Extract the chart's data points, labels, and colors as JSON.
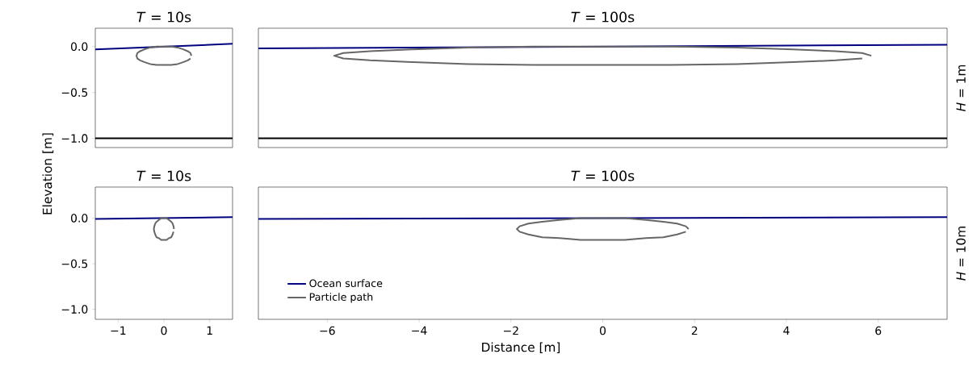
{
  "chart_data": [
    {
      "type": "line",
      "title": "*T* = 10s",
      "xlim": [
        -1.5,
        1.5
      ],
      "ylim": [
        -1.1,
        0.2
      ],
      "yticks": [
        {
          "value": 0,
          "label": "0.0"
        },
        {
          "value": -0.5,
          "label": "−0.5"
        },
        {
          "value": -1,
          "label": "−1.0"
        }
      ],
      "tick_labels": "y",
      "grid": false,
      "legend": false,
      "marker": "none",
      "line_style": "solid",
      "ref_lines": [
        {
          "axis": "y",
          "value": -1,
          "color": "#000000"
        }
      ],
      "series": [
        {
          "color": "#00007f",
          "x": [
            -1.5,
            1.5
          ],
          "values": [
            -0.03,
            0.03
          ]
        },
        {
          "color": "#666666",
          "x": [
            0.6,
            0.58,
            0.52,
            0.42,
            0.3,
            0.16,
            0,
            -0.16,
            -0.3,
            -0.42,
            -0.52,
            -0.58,
            -0.6,
            -0.58,
            -0.52,
            -0.42,
            -0.3,
            -0.16,
            0,
            0.16,
            0.3,
            0.42,
            0.52,
            0.58
          ],
          "values": [
            -0.1,
            -0.07,
            -0.05,
            -0.03,
            -0.01,
            0,
            0,
            0,
            -0.01,
            -0.03,
            -0.05,
            -0.07,
            -0.1,
            -0.13,
            -0.15,
            -0.17,
            -0.19,
            -0.2,
            -0.2,
            -0.2,
            -0.19,
            -0.17,
            -0.15,
            -0.13
          ]
        }
      ]
    },
    {
      "type": "line",
      "title": "*T* = 100s",
      "y2label": "*H* = 1m",
      "xlim": [
        -7.5,
        7.5
      ],
      "ylim": [
        -1.1,
        0.2
      ],
      "tick_labels": false,
      "grid": false,
      "legend": false,
      "marker": "none",
      "line_style": "solid",
      "ref_lines": [
        {
          "axis": "y",
          "value": -1,
          "color": "#000000"
        }
      ],
      "series": [
        {
          "color": "#00007f",
          "x": [
            -7.5,
            7.5
          ],
          "values": [
            -0.02,
            0.02
          ]
        },
        {
          "color": "#666666",
          "x": [
            5.85,
            5.65,
            5.07,
            4.14,
            2.93,
            1.51,
            0,
            -1.51,
            -2.93,
            -4.14,
            -5.07,
            -5.65,
            -5.85,
            -5.65,
            -5.07,
            -4.14,
            -2.93,
            -1.51,
            0,
            1.51,
            2.93,
            4.14,
            5.07,
            5.65
          ],
          "values": [
            -0.1,
            -0.07,
            -0.05,
            -0.03,
            -0.01,
            0,
            0,
            0,
            -0.01,
            -0.03,
            -0.05,
            -0.07,
            -0.1,
            -0.13,
            -0.15,
            -0.17,
            -0.19,
            -0.2,
            -0.2,
            -0.2,
            -0.19,
            -0.17,
            -0.15,
            -0.13
          ]
        }
      ]
    },
    {
      "type": "line",
      "title": "*T* = 10s",
      "ylabel": "Elevation [m]",
      "xlim": [
        -1.5,
        1.5
      ],
      "ylim": [
        -1.11,
        0.34
      ],
      "xticks": [
        {
          "value": -1,
          "label": "−1"
        },
        0,
        1
      ],
      "yticks": [
        {
          "value": 0,
          "label": "0.0"
        },
        {
          "value": -0.5,
          "label": "−0.5"
        },
        {
          "value": -1,
          "label": "−1.0"
        }
      ],
      "grid": false,
      "legend": false,
      "marker": "none",
      "line_style": "solid",
      "series": [
        {
          "color": "#00007f",
          "x": [
            -1.5,
            1.5
          ],
          "values": [
            -0.01,
            0.01
          ]
        },
        {
          "color": "#666666",
          "x": [
            0.22,
            0.21,
            0.19,
            0.16,
            0.11,
            0.06,
            0,
            -0.06,
            -0.11,
            -0.16,
            -0.19,
            -0.21,
            -0.22,
            -0.21,
            -0.19,
            -0.16,
            -0.11,
            -0.06,
            0,
            0.06,
            0.11,
            0.16,
            0.19,
            0.21
          ],
          "values": [
            -0.12,
            -0.09,
            -0.06,
            -0.04,
            -0.02,
            0,
            0,
            0,
            -0.02,
            -0.04,
            -0.06,
            -0.09,
            -0.12,
            -0.15,
            -0.18,
            -0.21,
            -0.22,
            -0.24,
            -0.24,
            -0.24,
            -0.22,
            -0.21,
            -0.18,
            -0.15
          ]
        }
      ]
    },
    {
      "type": "line",
      "title": "*T* = 100s",
      "xlabel": "Distance [m]",
      "y2label": "*H* = 10m",
      "xlim": [
        -7.5,
        7.5
      ],
      "ylim": [
        -1.11,
        0.34
      ],
      "xticks": [
        {
          "value": -6,
          "label": "−6"
        },
        {
          "value": -4,
          "label": "−4"
        },
        {
          "value": -2,
          "label": "−2"
        },
        0,
        2,
        4,
        6
      ],
      "tick_labels": "x",
      "grid": false,
      "legend": "bottom left",
      "marker": "none",
      "line_style": "solid",
      "series": [
        {
          "name": "Ocean surface",
          "color": "#00007f",
          "x": [
            -7.5,
            7.5
          ],
          "values": [
            -0.01,
            0.01
          ]
        },
        {
          "name": "Particle path",
          "color": "#666666",
          "x": [
            1.87,
            1.81,
            1.62,
            1.32,
            0.94,
            0.48,
            0,
            -0.48,
            -0.94,
            -1.32,
            -1.62,
            -1.81,
            -1.87,
            -1.81,
            -1.62,
            -1.32,
            -0.94,
            -0.48,
            0,
            0.48,
            0.94,
            1.32,
            1.62,
            1.81
          ],
          "values": [
            -0.12,
            -0.09,
            -0.06,
            -0.04,
            -0.02,
            0,
            0,
            0,
            -0.02,
            -0.04,
            -0.06,
            -0.09,
            -0.12,
            -0.15,
            -0.18,
            -0.21,
            -0.22,
            -0.24,
            -0.24,
            -0.24,
            -0.22,
            -0.21,
            -0.18,
            -0.15
          ]
        }
      ]
    }
  ]
}
